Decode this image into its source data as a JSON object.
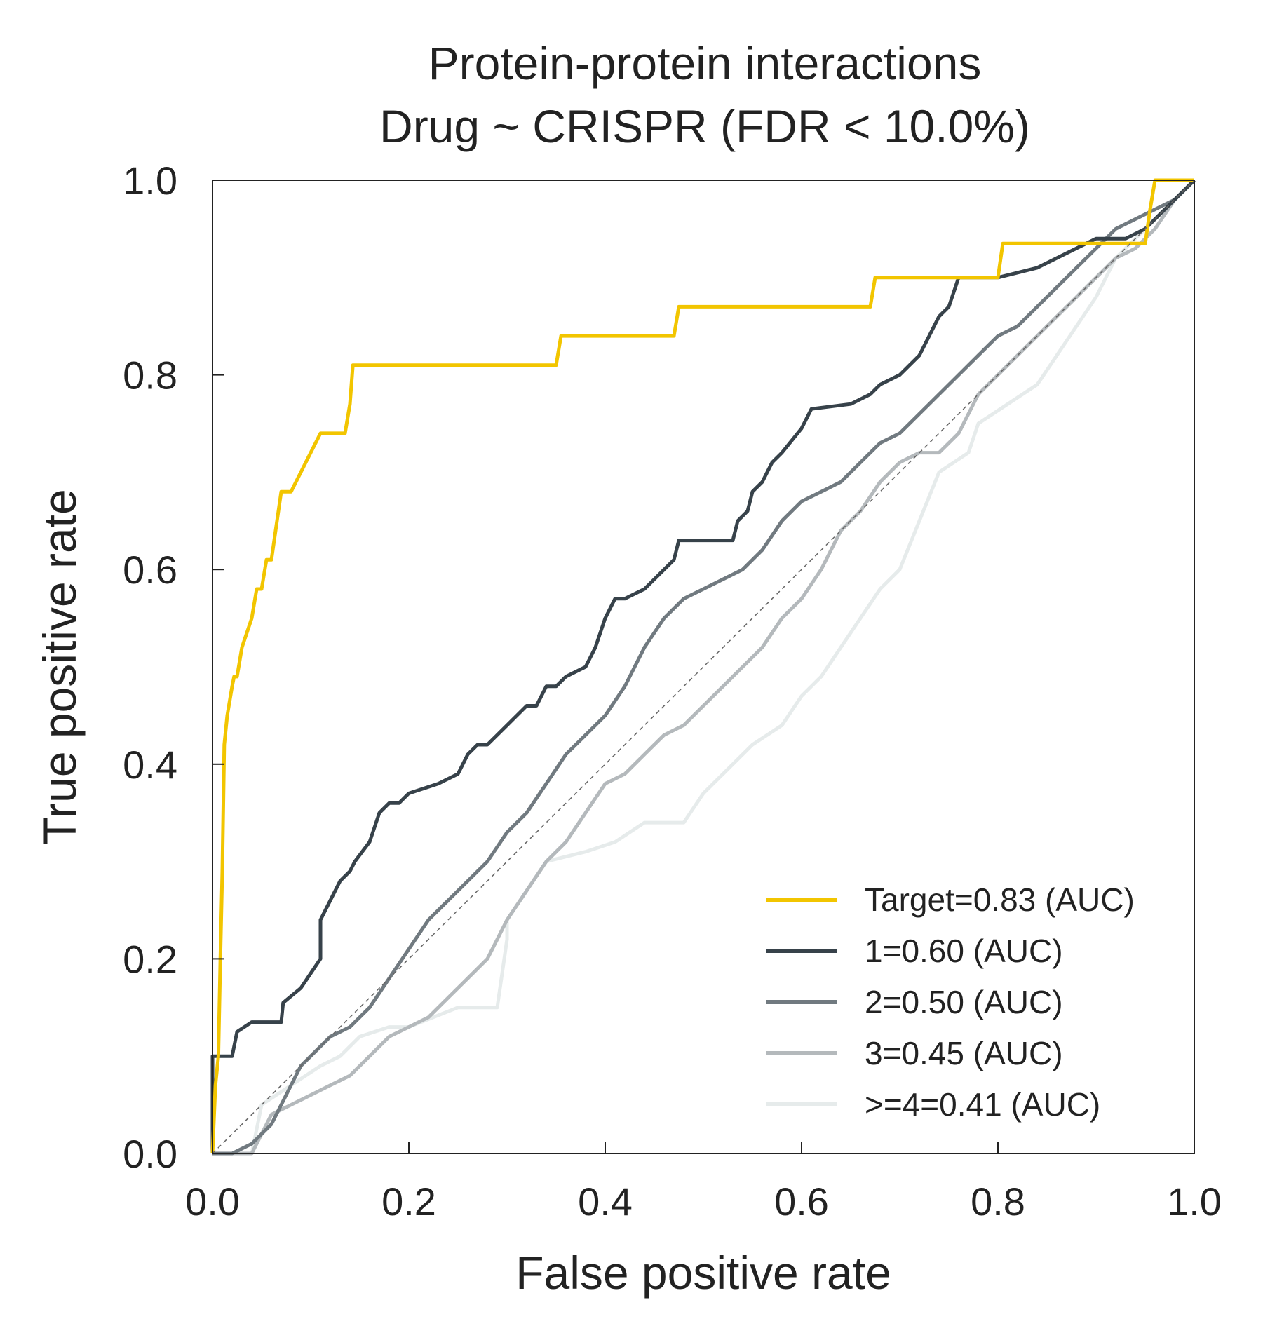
{
  "chart_data": {
    "type": "line",
    "title": "Protein-protein interactions",
    "subtitle": "Drug ~ CRISPR (FDR < 10.0%)",
    "xlabel": "False positive rate",
    "ylabel": "True positive rate",
    "xlim": [
      0.0,
      1.0
    ],
    "ylim": [
      0.0,
      1.0
    ],
    "xticks": [
      "0.0",
      "0.2",
      "0.4",
      "0.6",
      "0.8",
      "1.0"
    ],
    "yticks": [
      "0.0",
      "0.2",
      "0.4",
      "0.6",
      "0.8",
      "1.0"
    ],
    "grid": false,
    "legend_position": "bottom-right",
    "reference_line": {
      "style": "dashed",
      "color": "#666666",
      "x": [
        0,
        1
      ],
      "y": [
        0,
        1
      ]
    },
    "series": [
      {
        "name": "Target=0.83 (AUC)",
        "color": "#f2c500",
        "x": [
          0.0,
          0.003,
          0.006,
          0.008,
          0.01,
          0.012,
          0.015,
          0.02,
          0.022,
          0.025,
          0.03,
          0.04,
          0.045,
          0.05,
          0.055,
          0.06,
          0.07,
          0.08,
          0.095,
          0.11,
          0.135,
          0.14,
          0.143,
          0.2,
          0.35,
          0.355,
          0.47,
          0.475,
          0.67,
          0.675,
          0.8,
          0.805,
          0.95,
          0.955,
          0.96,
          0.98,
          1.0
        ],
        "y": [
          0.0,
          0.07,
          0.1,
          0.2,
          0.29,
          0.42,
          0.45,
          0.48,
          0.49,
          0.49,
          0.52,
          0.55,
          0.58,
          0.58,
          0.61,
          0.61,
          0.68,
          0.68,
          0.71,
          0.74,
          0.74,
          0.77,
          0.81,
          0.81,
          0.81,
          0.84,
          0.84,
          0.87,
          0.87,
          0.9,
          0.9,
          0.935,
          0.935,
          0.97,
          1.0,
          1.0,
          1.0
        ]
      },
      {
        "name": "1=0.60 (AUC)",
        "color": "#37424a",
        "x": [
          0.0,
          0.0,
          0.02,
          0.025,
          0.04,
          0.07,
          0.072,
          0.09,
          0.1,
          0.11,
          0.11,
          0.125,
          0.13,
          0.14,
          0.145,
          0.16,
          0.165,
          0.17,
          0.18,
          0.19,
          0.2,
          0.23,
          0.25,
          0.26,
          0.27,
          0.28,
          0.3,
          0.31,
          0.32,
          0.33,
          0.34,
          0.35,
          0.36,
          0.38,
          0.39,
          0.4,
          0.41,
          0.42,
          0.44,
          0.45,
          0.46,
          0.47,
          0.475,
          0.53,
          0.535,
          0.545,
          0.55,
          0.56,
          0.57,
          0.58,
          0.6,
          0.61,
          0.65,
          0.67,
          0.68,
          0.7,
          0.72,
          0.73,
          0.74,
          0.75,
          0.76,
          0.8,
          0.84,
          0.86,
          0.9,
          0.93,
          0.95,
          0.96,
          0.97,
          1.0
        ],
        "y": [
          0.0,
          0.1,
          0.1,
          0.125,
          0.135,
          0.135,
          0.155,
          0.17,
          0.185,
          0.2,
          0.24,
          0.27,
          0.28,
          0.29,
          0.3,
          0.32,
          0.335,
          0.35,
          0.36,
          0.36,
          0.37,
          0.38,
          0.39,
          0.41,
          0.42,
          0.42,
          0.44,
          0.45,
          0.46,
          0.46,
          0.48,
          0.48,
          0.49,
          0.5,
          0.52,
          0.55,
          0.57,
          0.57,
          0.58,
          0.59,
          0.6,
          0.61,
          0.63,
          0.63,
          0.65,
          0.66,
          0.68,
          0.69,
          0.71,
          0.72,
          0.745,
          0.765,
          0.77,
          0.78,
          0.79,
          0.8,
          0.82,
          0.84,
          0.86,
          0.87,
          0.9,
          0.9,
          0.91,
          0.92,
          0.94,
          0.94,
          0.95,
          0.96,
          0.97,
          1.0
        ]
      },
      {
        "name": "2=0.50 (AUC)",
        "color": "#717a80",
        "x": [
          0.0,
          0.02,
          0.04,
          0.05,
          0.06,
          0.07,
          0.08,
          0.09,
          0.1,
          0.12,
          0.14,
          0.16,
          0.18,
          0.2,
          0.22,
          0.24,
          0.26,
          0.28,
          0.3,
          0.32,
          0.34,
          0.36,
          0.38,
          0.4,
          0.42,
          0.44,
          0.46,
          0.48,
          0.5,
          0.52,
          0.54,
          0.56,
          0.58,
          0.6,
          0.62,
          0.64,
          0.66,
          0.68,
          0.7,
          0.72,
          0.74,
          0.76,
          0.78,
          0.8,
          0.82,
          0.84,
          0.86,
          0.88,
          0.9,
          0.92,
          0.94,
          0.96,
          0.98,
          1.0
        ],
        "y": [
          0.0,
          0.0,
          0.01,
          0.02,
          0.03,
          0.05,
          0.07,
          0.09,
          0.1,
          0.12,
          0.13,
          0.15,
          0.18,
          0.21,
          0.24,
          0.26,
          0.28,
          0.3,
          0.33,
          0.35,
          0.38,
          0.41,
          0.43,
          0.45,
          0.48,
          0.52,
          0.55,
          0.57,
          0.58,
          0.59,
          0.6,
          0.62,
          0.65,
          0.67,
          0.68,
          0.69,
          0.71,
          0.73,
          0.74,
          0.76,
          0.78,
          0.8,
          0.82,
          0.84,
          0.85,
          0.87,
          0.89,
          0.91,
          0.93,
          0.95,
          0.96,
          0.97,
          0.98,
          1.0
        ]
      },
      {
        "name": "3=0.45 (AUC)",
        "color": "#b4b9bc",
        "x": [
          0.0,
          0.04,
          0.06,
          0.08,
          0.1,
          0.12,
          0.14,
          0.16,
          0.18,
          0.2,
          0.22,
          0.24,
          0.26,
          0.28,
          0.3,
          0.32,
          0.34,
          0.36,
          0.38,
          0.4,
          0.42,
          0.44,
          0.46,
          0.48,
          0.5,
          0.52,
          0.54,
          0.56,
          0.58,
          0.6,
          0.62,
          0.64,
          0.66,
          0.68,
          0.7,
          0.72,
          0.74,
          0.76,
          0.78,
          0.8,
          0.82,
          0.84,
          0.86,
          0.88,
          0.9,
          0.92,
          0.94,
          0.96,
          0.98,
          1.0
        ],
        "y": [
          0.0,
          0.0,
          0.04,
          0.05,
          0.06,
          0.07,
          0.08,
          0.1,
          0.12,
          0.13,
          0.14,
          0.16,
          0.18,
          0.2,
          0.24,
          0.27,
          0.3,
          0.32,
          0.35,
          0.38,
          0.39,
          0.41,
          0.43,
          0.44,
          0.46,
          0.48,
          0.5,
          0.52,
          0.55,
          0.57,
          0.6,
          0.64,
          0.66,
          0.69,
          0.71,
          0.72,
          0.72,
          0.74,
          0.78,
          0.8,
          0.82,
          0.84,
          0.86,
          0.88,
          0.9,
          0.92,
          0.93,
          0.95,
          0.98,
          1.0
        ]
      },
      {
        "name": ">=4=0.41 (AUC)",
        "color": "#e6ebeb",
        "x": [
          0.0,
          0.04,
          0.05,
          0.08,
          0.11,
          0.13,
          0.15,
          0.18,
          0.2,
          0.25,
          0.29,
          0.3,
          0.3,
          0.34,
          0.38,
          0.41,
          0.44,
          0.48,
          0.5,
          0.52,
          0.55,
          0.58,
          0.6,
          0.62,
          0.64,
          0.68,
          0.7,
          0.72,
          0.74,
          0.77,
          0.78,
          0.84,
          0.86,
          0.88,
          0.9,
          0.92,
          0.95,
          1.0
        ],
        "y": [
          0.0,
          0.0,
          0.05,
          0.07,
          0.09,
          0.1,
          0.12,
          0.13,
          0.13,
          0.15,
          0.15,
          0.22,
          0.24,
          0.3,
          0.31,
          0.32,
          0.34,
          0.34,
          0.37,
          0.39,
          0.42,
          0.44,
          0.47,
          0.49,
          0.52,
          0.58,
          0.6,
          0.65,
          0.7,
          0.72,
          0.75,
          0.79,
          0.82,
          0.85,
          0.88,
          0.92,
          0.95,
          1.0
        ]
      }
    ]
  }
}
